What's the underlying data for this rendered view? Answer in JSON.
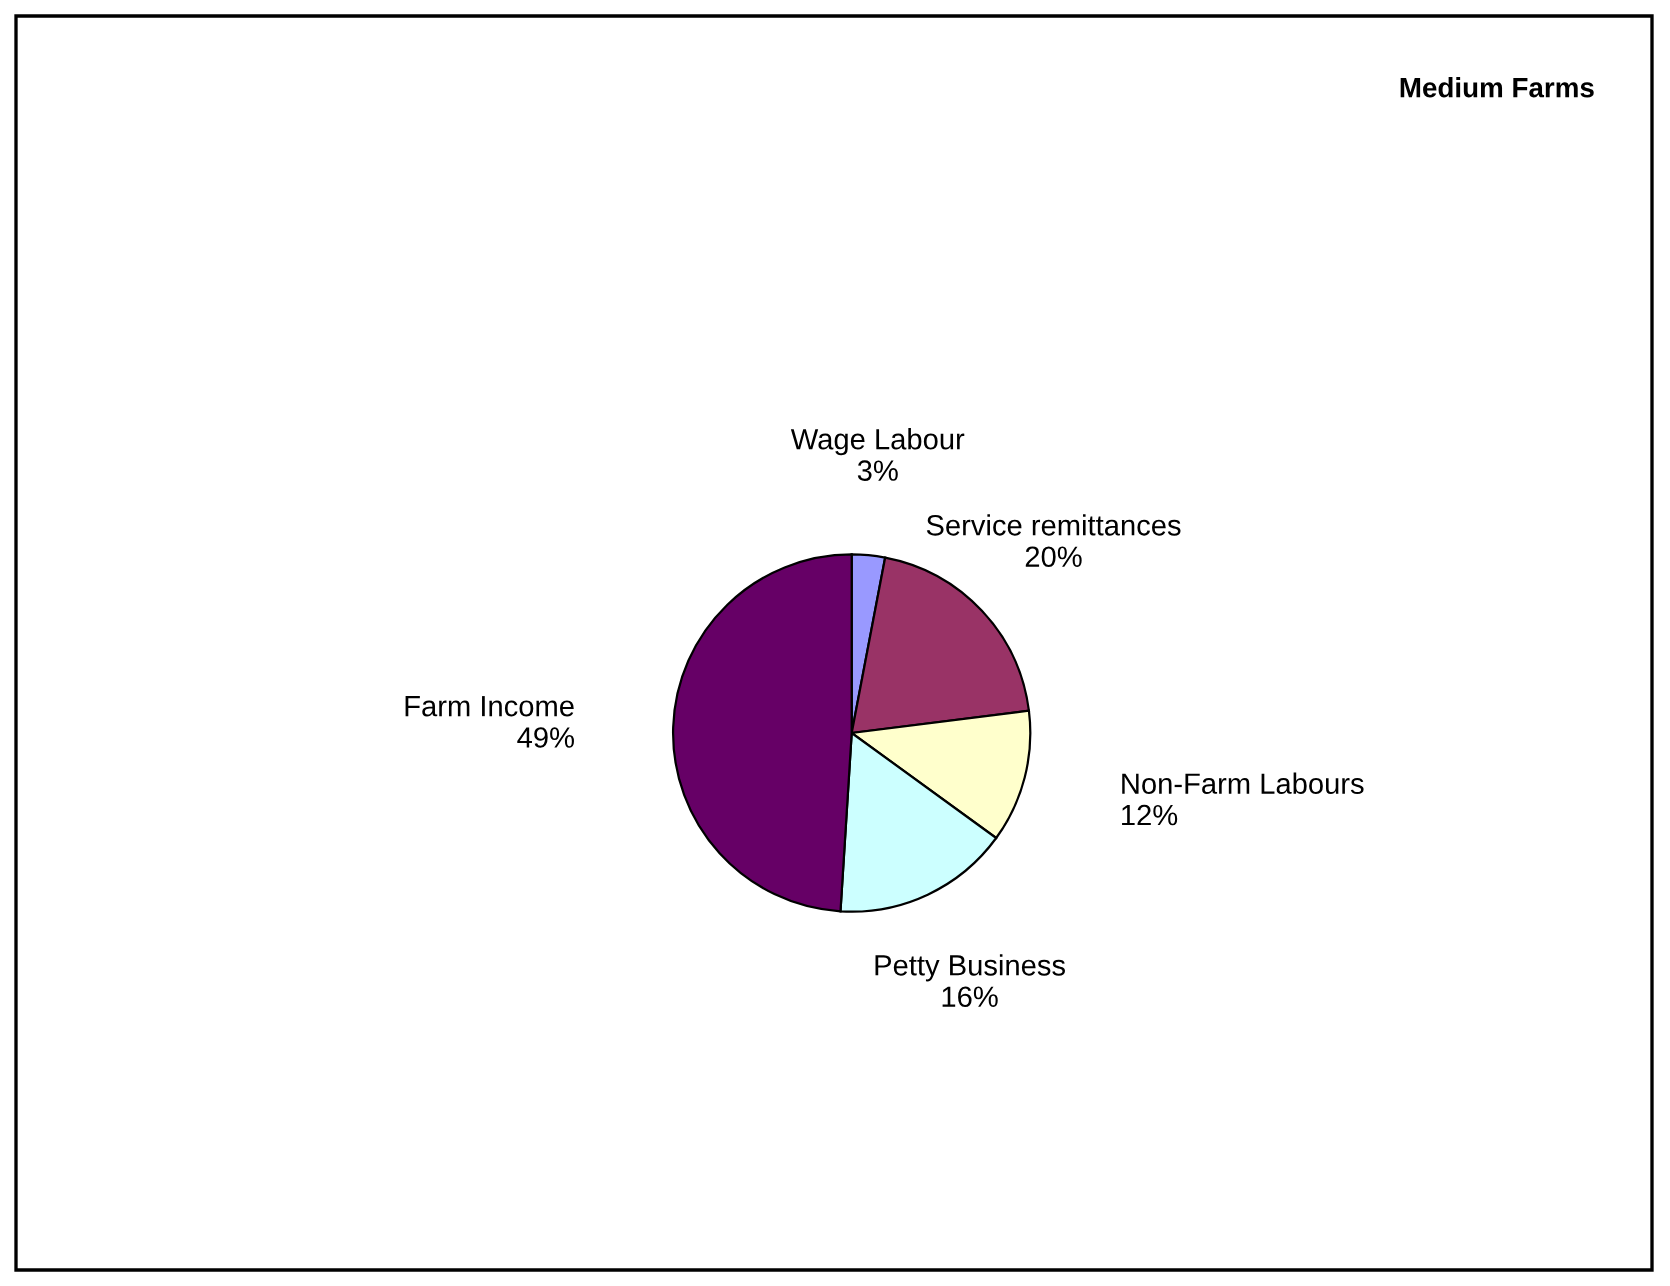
{
  "chart_data": {
    "type": "pie",
    "title": "Medium Farms",
    "categories": [
      "Wage Labour",
      "Service remittances",
      "Non-Farm Labours",
      "Petty Business",
      "Farm Income"
    ],
    "values": [
      3,
      20,
      12,
      16,
      49
    ],
    "value_labels": [
      "3%",
      "20%",
      "12%",
      "16%",
      "49%"
    ],
    "colors": [
      "#9999ff",
      "#993366",
      "#ffffcc",
      "#ccffff",
      "#660066"
    ],
    "legend": false
  }
}
